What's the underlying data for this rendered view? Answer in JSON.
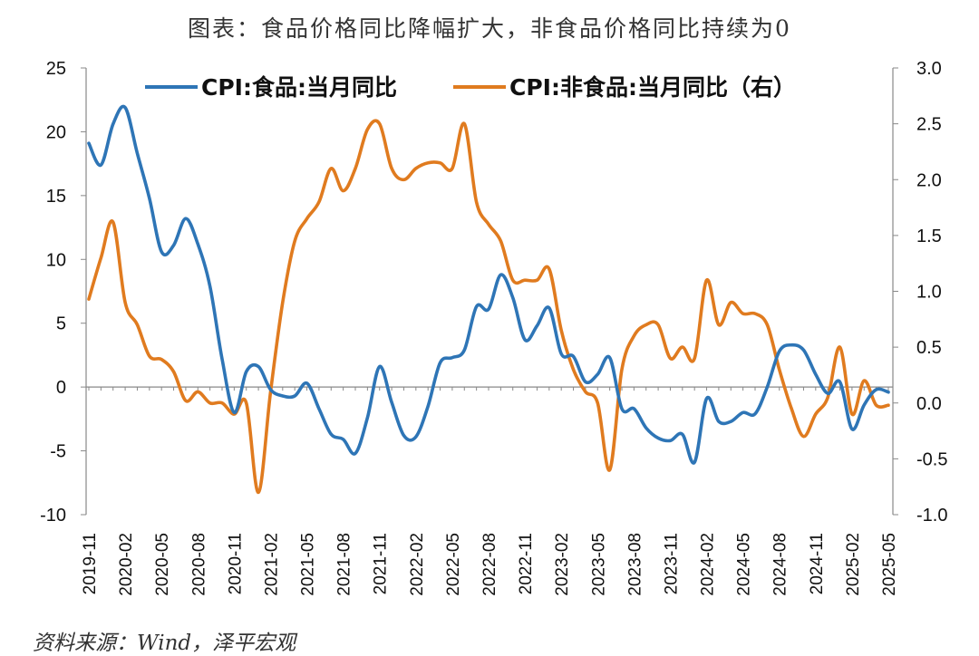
{
  "title": "图表：食品价格同比降幅扩大，非食品价格同比持续为0",
  "source": "资料来源：Wind，泽平宏观",
  "chart_data": {
    "type": "line",
    "left_axis": {
      "min": -10,
      "max": 25,
      "step": 5,
      "ticks": [
        "-10",
        "-5",
        "0",
        "5",
        "10",
        "15",
        "20",
        "25"
      ]
    },
    "right_axis": {
      "min": -1.0,
      "max": 3.0,
      "step": 0.5,
      "ticks": [
        "-1.0",
        "-0.5",
        "0.0",
        "0.5",
        "1.0",
        "1.5",
        "2.0",
        "2.5",
        "3.0"
      ]
    },
    "x_labels": [
      "2019-11",
      "2020-02",
      "2020-05",
      "2020-08",
      "2020-11",
      "2021-02",
      "2021-05",
      "2021-08",
      "2021-11",
      "2022-02",
      "2022-05",
      "2022-08",
      "2022-11",
      "2023-02",
      "2023-05",
      "2023-08",
      "2023-11",
      "2024-02",
      "2024-05",
      "2024-08",
      "2024-11",
      "2025-02",
      "2025-05"
    ],
    "x": [
      "2019-11",
      "2019-12",
      "2020-01",
      "2020-02",
      "2020-03",
      "2020-04",
      "2020-05",
      "2020-06",
      "2020-07",
      "2020-08",
      "2020-09",
      "2020-10",
      "2020-11",
      "2020-12",
      "2021-01",
      "2021-02",
      "2021-03",
      "2021-04",
      "2021-05",
      "2021-06",
      "2021-07",
      "2021-08",
      "2021-09",
      "2021-10",
      "2021-11",
      "2021-12",
      "2022-01",
      "2022-02",
      "2022-03",
      "2022-04",
      "2022-05",
      "2022-06",
      "2022-07",
      "2022-08",
      "2022-09",
      "2022-10",
      "2022-11",
      "2022-12",
      "2023-01",
      "2023-02",
      "2023-03",
      "2023-04",
      "2023-05",
      "2023-06",
      "2023-07",
      "2023-08",
      "2023-09",
      "2023-10",
      "2023-11",
      "2023-12",
      "2024-01",
      "2024-02",
      "2024-03",
      "2024-04",
      "2024-05",
      "2024-06",
      "2024-07",
      "2024-08",
      "2024-09",
      "2024-10",
      "2024-11",
      "2024-12",
      "2025-01",
      "2025-02",
      "2025-03",
      "2025-04",
      "2025-05"
    ],
    "series": [
      {
        "name": "CPI:食品:当月同比",
        "axis": "left",
        "color": "#2e75b6",
        "values": [
          19.1,
          17.4,
          20.6,
          21.9,
          18.3,
          14.8,
          10.6,
          11.1,
          13.2,
          11.2,
          7.9,
          2.2,
          -2.0,
          1.2,
          1.6,
          -0.2,
          -0.7,
          -0.7,
          0.3,
          -1.7,
          -3.7,
          -4.1,
          -5.2,
          -2.4,
          1.6,
          -1.2,
          -3.8,
          -3.9,
          -1.5,
          1.9,
          2.3,
          2.9,
          6.3,
          6.1,
          8.8,
          7.0,
          3.7,
          4.8,
          6.2,
          2.6,
          2.4,
          0.4,
          1.0,
          2.3,
          -1.7,
          -1.7,
          -3.2,
          -4.0,
          -4.2,
          -3.7,
          -5.9,
          -0.9,
          -2.7,
          -2.7,
          -2.0,
          -2.1,
          0.0,
          2.8,
          3.3,
          2.9,
          1.0,
          -0.5,
          0.4,
          -3.3,
          -1.4,
          -0.2,
          -0.4
        ]
      },
      {
        "name": "CPI:非食品:当月同比（右）",
        "axis": "right",
        "color": "#e07b1f",
        "values": [
          0.93,
          1.3,
          1.62,
          0.9,
          0.7,
          0.42,
          0.39,
          0.28,
          0.02,
          0.1,
          0.0,
          0.0,
          -0.1,
          0.0,
          -0.8,
          0.1,
          0.9,
          1.45,
          1.65,
          1.8,
          2.1,
          1.9,
          2.1,
          2.45,
          2.5,
          2.1,
          2.0,
          2.1,
          2.15,
          2.15,
          2.1,
          2.5,
          1.8,
          1.6,
          1.45,
          1.1,
          1.1,
          1.1,
          1.2,
          0.65,
          0.3,
          0.1,
          0.0,
          -0.6,
          0.3,
          0.6,
          0.7,
          0.7,
          0.4,
          0.5,
          0.4,
          1.1,
          0.7,
          0.9,
          0.8,
          0.8,
          0.7,
          0.3,
          -0.05,
          -0.3,
          -0.1,
          0.05,
          0.5,
          -0.1,
          0.2,
          -0.02,
          -0.02
        ]
      }
    ]
  }
}
